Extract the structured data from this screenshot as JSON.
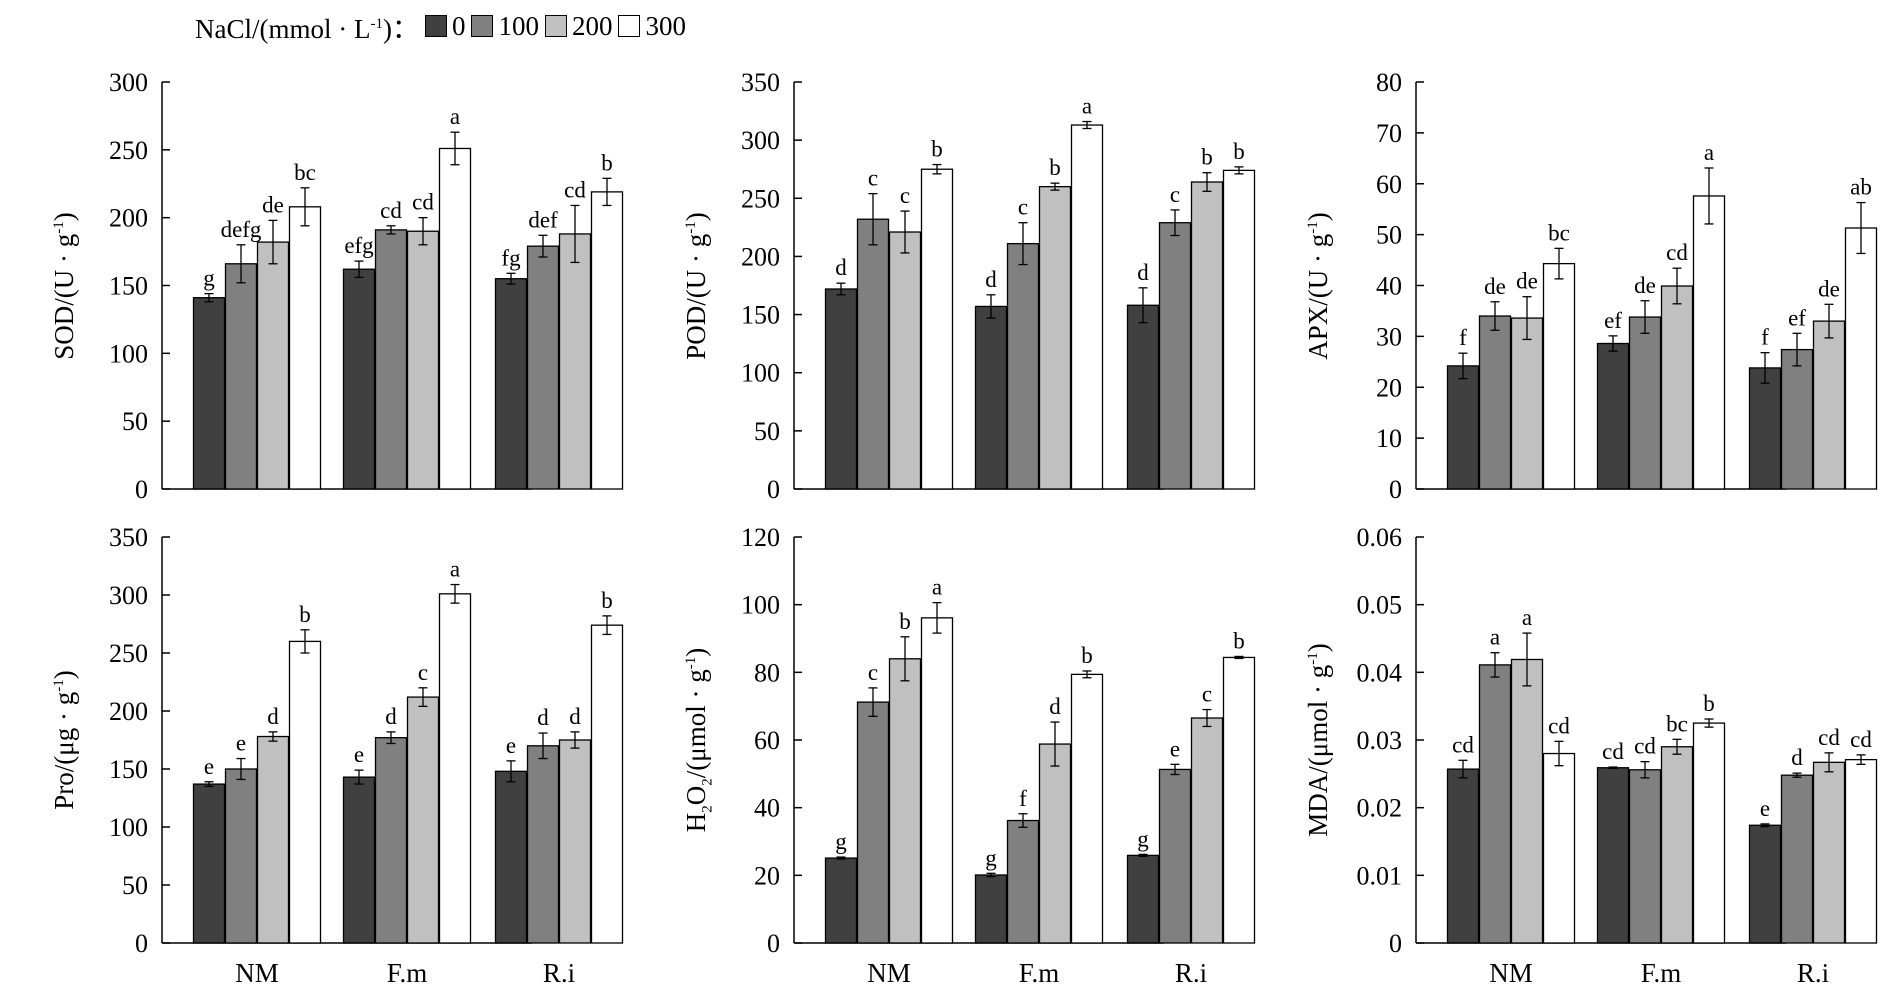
{
  "legend": {
    "title_html": "NaCl/(mmol · L<sup>-1</sup>)：",
    "items": [
      {
        "label": "0",
        "color": "#404040"
      },
      {
        "label": "100",
        "color": "#808080"
      },
      {
        "label": "200",
        "color": "#c0c0c0"
      },
      {
        "label": "300",
        "color": "#ffffff"
      }
    ]
  },
  "chart_data": [
    {
      "type": "bar",
      "ylabel_html": "SOD/(U · g<sup>-1</sup>)",
      "categories": [
        "NM",
        "F.m",
        "R.i"
      ],
      "ylim": [
        0,
        300
      ],
      "yticks": [
        0,
        50,
        100,
        150,
        200,
        250,
        300
      ],
      "series": [
        {
          "name": "0",
          "values": [
            141,
            162,
            155
          ],
          "errors": [
            3,
            6,
            4
          ],
          "letters": [
            "g",
            "efg",
            "fg"
          ]
        },
        {
          "name": "100",
          "values": [
            166,
            191,
            179
          ],
          "errors": [
            14,
            3,
            8
          ],
          "letters": [
            "defg",
            "cd",
            "def"
          ]
        },
        {
          "name": "200",
          "values": [
            182,
            190,
            188
          ],
          "errors": [
            16,
            10,
            21
          ],
          "letters": [
            "de",
            "cd",
            "cd"
          ]
        },
        {
          "name": "300",
          "values": [
            208,
            251,
            219
          ],
          "errors": [
            14,
            12,
            10
          ],
          "letters": [
            "bc",
            "a",
            "b"
          ]
        }
      ]
    },
    {
      "type": "bar",
      "ylabel_html": "POD/(U · g<sup>-1</sup>)",
      "categories": [
        "NM",
        "F.m",
        "R.i"
      ],
      "ylim": [
        0,
        350
      ],
      "yticks": [
        0,
        50,
        100,
        150,
        200,
        250,
        300,
        350
      ],
      "series": [
        {
          "name": "0",
          "values": [
            172,
            157,
            158
          ],
          "errors": [
            5,
            10,
            15
          ],
          "letters": [
            "d",
            "d",
            "d"
          ]
        },
        {
          "name": "100",
          "values": [
            232,
            211,
            229
          ],
          "errors": [
            22,
            18,
            11
          ],
          "letters": [
            "c",
            "c",
            "c"
          ]
        },
        {
          "name": "200",
          "values": [
            221,
            260,
            264
          ],
          "errors": [
            18,
            3,
            8
          ],
          "letters": [
            "c",
            "b",
            "b"
          ]
        },
        {
          "name": "300",
          "values": [
            275,
            313,
            274
          ],
          "errors": [
            4,
            3,
            3
          ],
          "letters": [
            "b",
            "a",
            "b"
          ]
        }
      ]
    },
    {
      "type": "bar",
      "ylabel_html": "APX/(U · g<sup>-1</sup>)",
      "categories": [
        "NM",
        "F.m",
        "R.i"
      ],
      "ylim": [
        0,
        80
      ],
      "yticks": [
        0,
        10,
        20,
        30,
        40,
        50,
        60,
        70,
        80
      ],
      "series": [
        {
          "name": "0",
          "values": [
            24.2,
            28.6,
            23.8
          ],
          "errors": [
            2.5,
            1.5,
            3.0
          ],
          "letters": [
            "f",
            "ef",
            "f"
          ]
        },
        {
          "name": "100",
          "values": [
            34.0,
            33.8,
            27.4
          ],
          "errors": [
            2.8,
            3.2,
            3.2
          ],
          "letters": [
            "de",
            "de",
            "ef"
          ]
        },
        {
          "name": "200",
          "values": [
            33.6,
            39.9,
            33.0
          ],
          "errors": [
            4.2,
            3.5,
            3.3
          ],
          "letters": [
            "de",
            "cd",
            "de"
          ]
        },
        {
          "name": "300",
          "values": [
            44.3,
            57.6,
            51.3
          ],
          "errors": [
            3.0,
            5.5,
            5.0
          ],
          "letters": [
            "bc",
            "a",
            "ab"
          ]
        }
      ]
    },
    {
      "type": "bar",
      "ylabel_html": "Pro/(μg · g<sup>-1</sup>)",
      "categories": [
        "NM",
        "F.m",
        "R.i"
      ],
      "ylim": [
        0,
        350
      ],
      "yticks": [
        0,
        50,
        100,
        150,
        200,
        250,
        300,
        350
      ],
      "series": [
        {
          "name": "0",
          "values": [
            137,
            143,
            148
          ],
          "errors": [
            2,
            6,
            9
          ],
          "letters": [
            "e",
            "e",
            "e"
          ]
        },
        {
          "name": "100",
          "values": [
            150,
            177,
            170
          ],
          "errors": [
            9,
            5,
            11
          ],
          "letters": [
            "e",
            "d",
            "d"
          ]
        },
        {
          "name": "200",
          "values": [
            178,
            212,
            175
          ],
          "errors": [
            4,
            8,
            7
          ],
          "letters": [
            "d",
            "c",
            "d"
          ]
        },
        {
          "name": "300",
          "values": [
            260,
            301,
            274
          ],
          "errors": [
            10,
            8,
            8
          ],
          "letters": [
            "b",
            "a",
            "b"
          ]
        }
      ]
    },
    {
      "type": "bar",
      "ylabel_html": "H<sub>2</sub>O<sub>2</sub>/(μmol · g<sup>-1</sup>)",
      "categories": [
        "NM",
        "F.m",
        "R.i"
      ],
      "ylim": [
        0,
        120
      ],
      "yticks": [
        0,
        20,
        40,
        60,
        80,
        100,
        120
      ],
      "series": [
        {
          "name": "0",
          "values": [
            25.1,
            20.1,
            25.9
          ],
          "errors": [
            0.3,
            0.5,
            0.3
          ],
          "letters": [
            "g",
            "g",
            "g"
          ]
        },
        {
          "name": "100",
          "values": [
            71.2,
            36.2,
            51.3
          ],
          "errors": [
            4.2,
            2.0,
            1.5
          ],
          "letters": [
            "c",
            "f",
            "e"
          ]
        },
        {
          "name": "200",
          "values": [
            84.0,
            58.8,
            66.5
          ],
          "errors": [
            6.5,
            6.5,
            2.5
          ],
          "letters": [
            "b",
            "d",
            "c"
          ]
        },
        {
          "name": "300",
          "values": [
            96.1,
            79.4,
            84.4
          ],
          "errors": [
            4.5,
            1.0,
            0.3
          ],
          "letters": [
            "a",
            "b",
            "b"
          ]
        }
      ]
    },
    {
      "type": "bar",
      "ylabel_html": "MDA/(μmol · g<sup>-1</sup>)",
      "categories": [
        "NM",
        "F.m",
        "R.i"
      ],
      "ylim": [
        0,
        0.06
      ],
      "yticks": [
        0,
        0.01,
        0.02,
        0.03,
        0.04,
        0.05,
        0.06
      ],
      "series": [
        {
          "name": "0",
          "values": [
            0.0257,
            0.0259,
            0.0174
          ],
          "errors": [
            0.0013,
            0.0001,
            0.0002
          ],
          "letters": [
            "cd",
            "cd",
            "e"
          ]
        },
        {
          "name": "100",
          "values": [
            0.0411,
            0.0256,
            0.0248
          ],
          "errors": [
            0.0018,
            0.0012,
            0.0003
          ],
          "letters": [
            "a",
            "cd",
            "d"
          ]
        },
        {
          "name": "200",
          "values": [
            0.0419,
            0.029,
            0.0267
          ],
          "errors": [
            0.0039,
            0.0011,
            0.0014
          ],
          "letters": [
            "a",
            "bc",
            "cd"
          ]
        },
        {
          "name": "300",
          "values": [
            0.028,
            0.0325,
            0.0271
          ],
          "errors": [
            0.0018,
            0.0006,
            0.0007
          ],
          "letters": [
            "cd",
            "b",
            "cd"
          ]
        }
      ]
    }
  ]
}
